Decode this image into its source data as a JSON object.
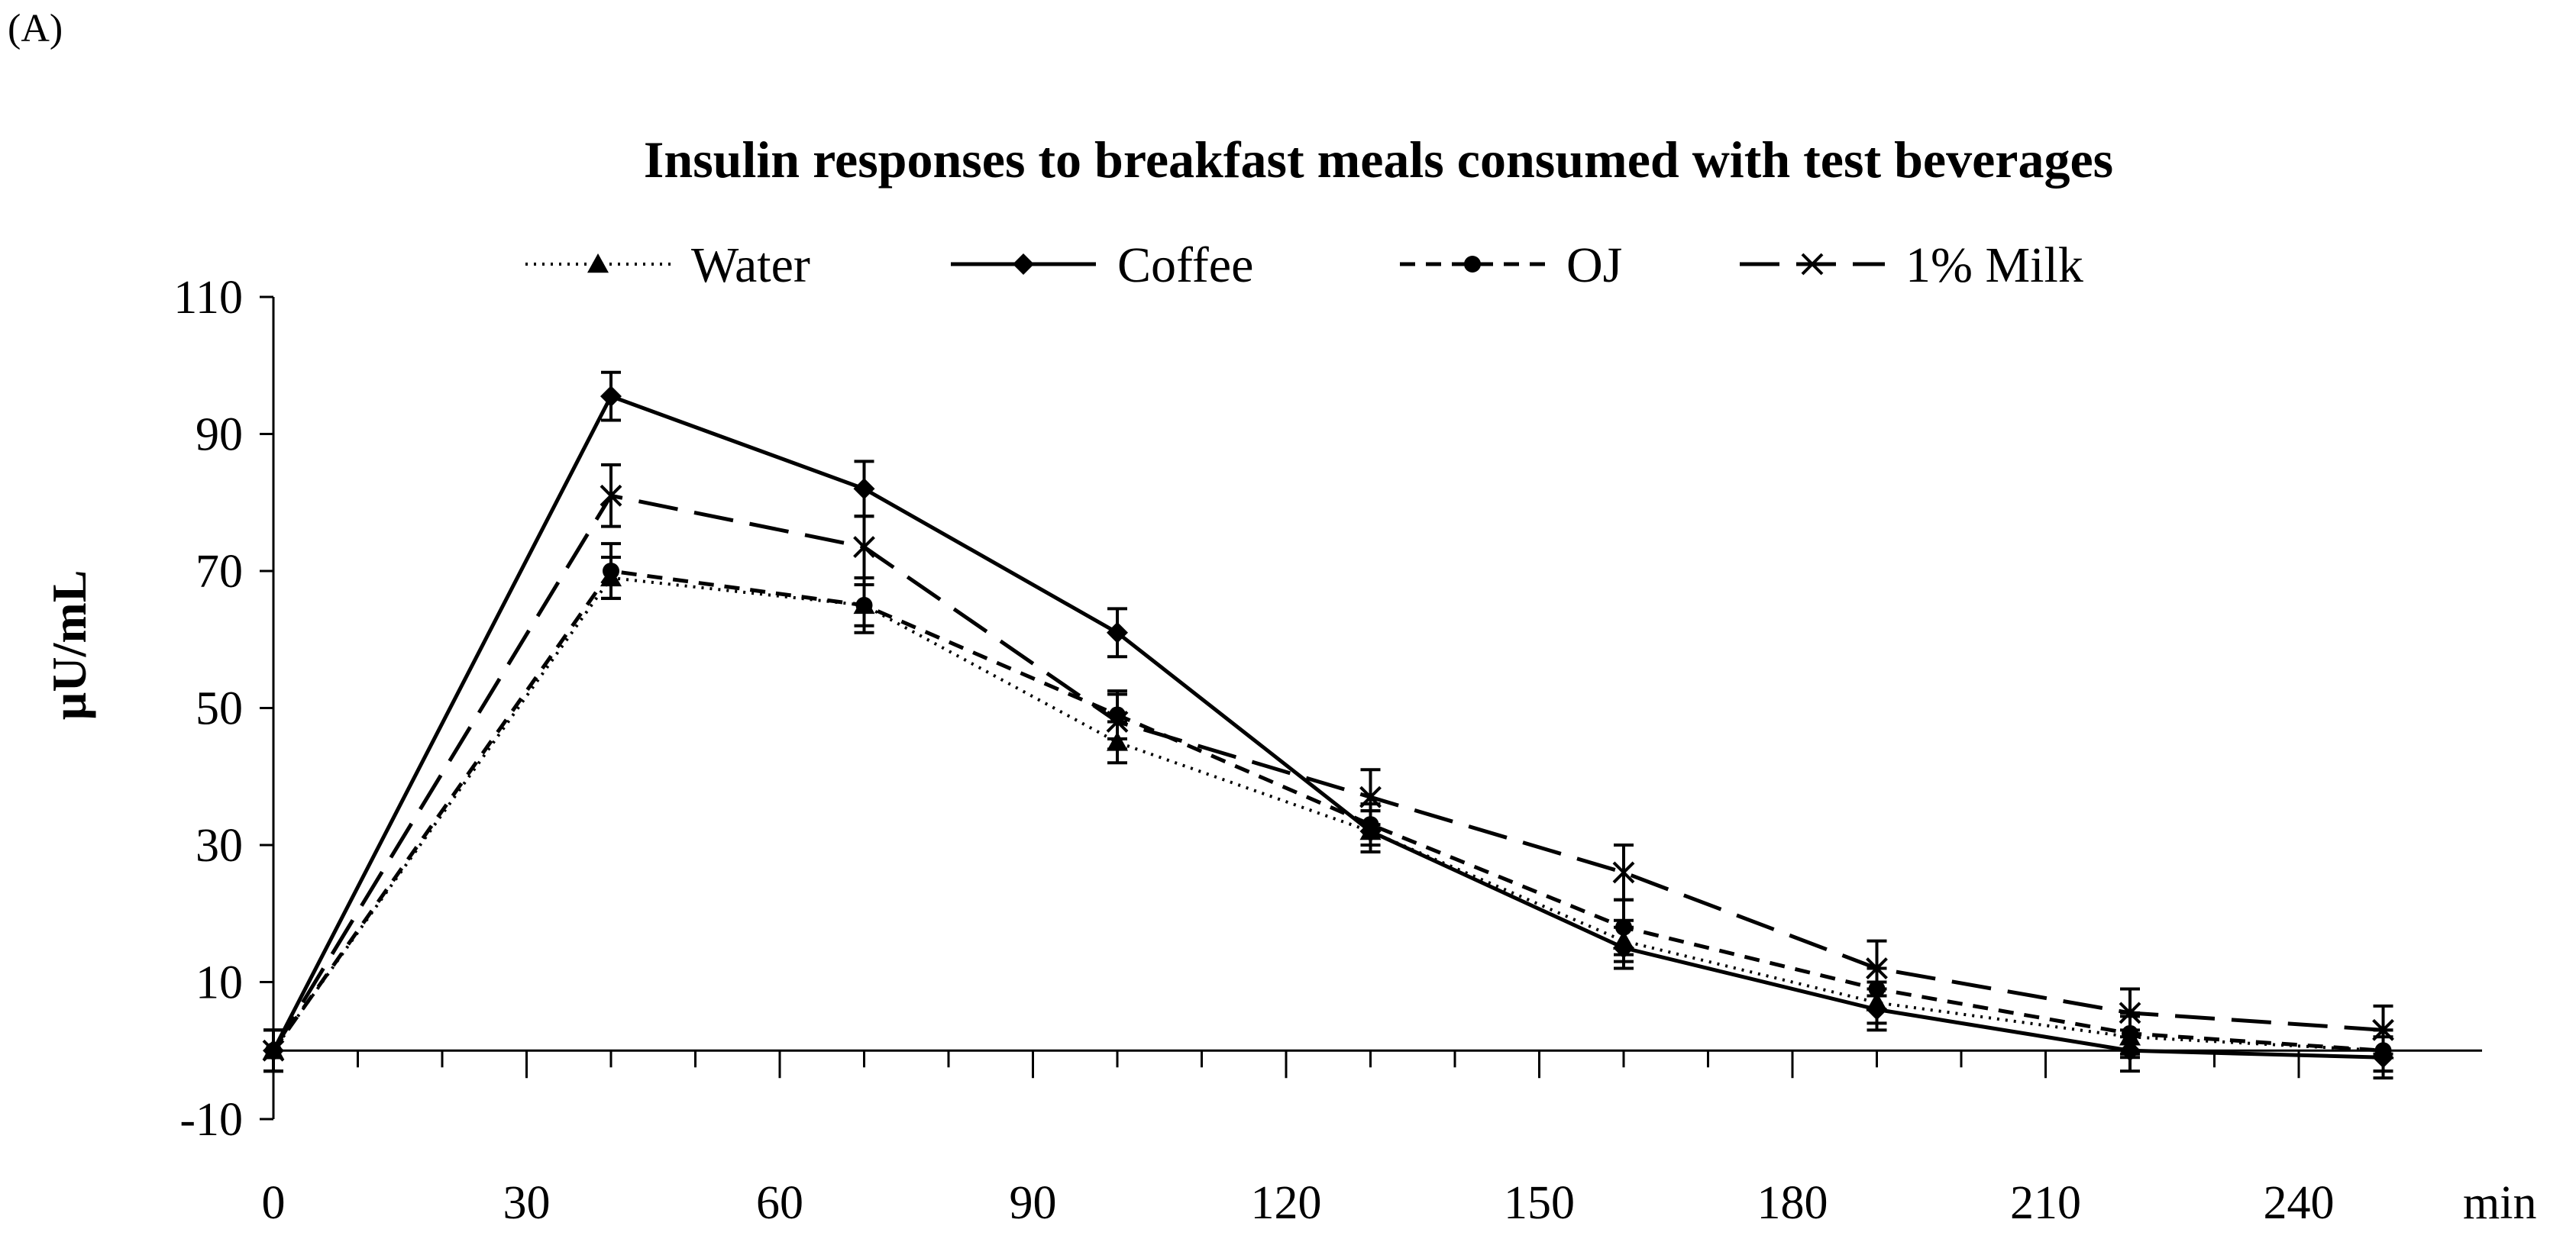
{
  "panel_label": "(A)",
  "chart_data": {
    "type": "line",
    "title": "Insulin responses to breakfast meals consumed with test beverages",
    "xlabel": "min",
    "ylabel": "µU/mL",
    "xlim": [
      0,
      255
    ],
    "ylim": [
      -10,
      110
    ],
    "x_ticks": [
      0,
      30,
      60,
      90,
      120,
      150,
      180,
      210,
      240
    ],
    "y_ticks": [
      -10,
      10,
      30,
      50,
      70,
      90,
      110
    ],
    "legend_position": "top",
    "x": [
      0,
      40,
      70,
      100,
      130,
      160,
      190,
      220,
      250
    ],
    "series": [
      {
        "name": "Water",
        "style": "dotted",
        "marker": "triangle",
        "values": [
          0,
          69,
          65,
          45,
          32,
          16,
          7,
          2,
          0
        ],
        "errors": [
          3,
          3,
          3,
          3,
          3,
          3,
          3,
          3,
          3
        ]
      },
      {
        "name": "Coffee",
        "style": "solid",
        "marker": "diamond",
        "values": [
          0,
          95.5,
          82,
          61,
          32,
          15,
          6,
          0,
          -1
        ],
        "errors": [
          3,
          3.5,
          4,
          3.5,
          3,
          3,
          3,
          3,
          3
        ]
      },
      {
        "name": "OJ",
        "style": "dashed",
        "marker": "circle",
        "values": [
          0,
          70,
          65,
          49,
          33,
          18,
          9,
          2.5,
          0
        ],
        "errors": [
          3,
          4,
          4,
          3.5,
          3,
          4,
          3,
          3,
          3
        ]
      },
      {
        "name": "1% Milk",
        "style": "longdash",
        "marker": "x",
        "values": [
          0,
          81,
          73.5,
          48,
          37,
          26,
          12,
          5.5,
          3
        ],
        "errors": [
          3,
          4.5,
          4.5,
          4,
          4,
          4,
          4,
          3.5,
          3.5
        ]
      }
    ]
  }
}
